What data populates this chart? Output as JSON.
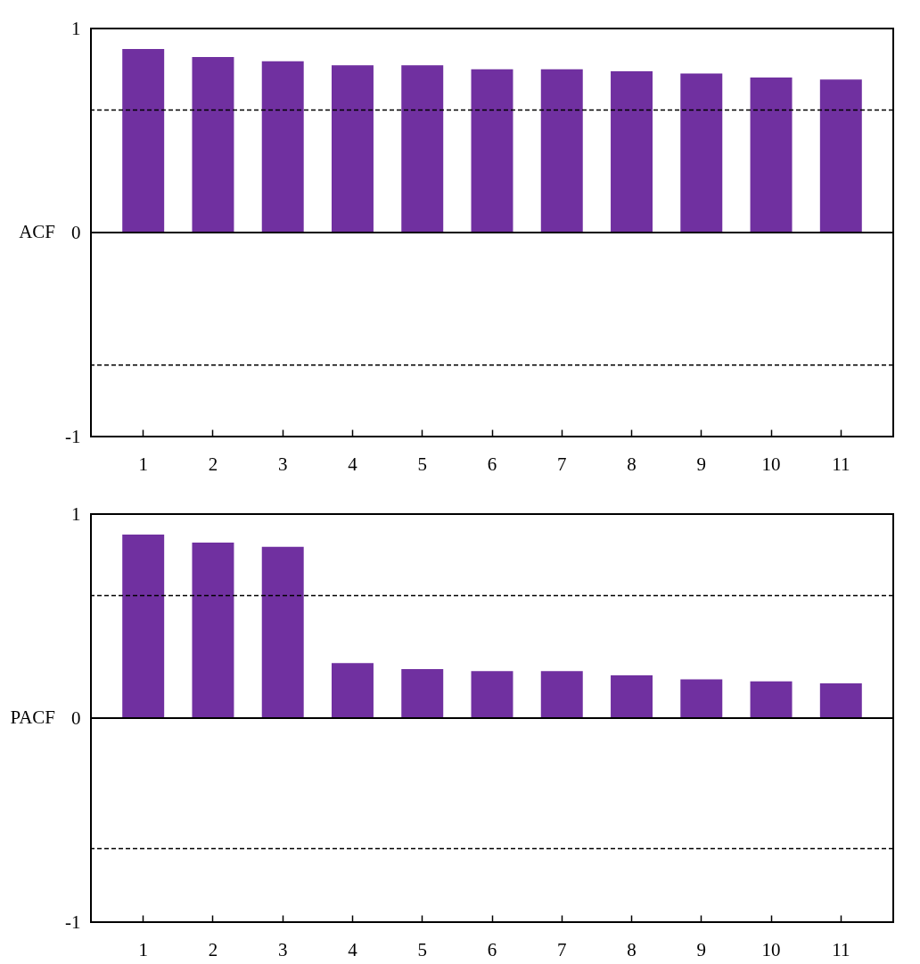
{
  "chart_data": [
    {
      "type": "bar",
      "ylabel": "ACF",
      "categories": [
        "1",
        "2",
        "3",
        "4",
        "5",
        "6",
        "7",
        "8",
        "9",
        "10",
        "11"
      ],
      "values": [
        0.9,
        0.86,
        0.84,
        0.82,
        0.82,
        0.8,
        0.8,
        0.79,
        0.78,
        0.76,
        0.75
      ],
      "color": "#7030a0",
      "ylim": [
        -1,
        1
      ],
      "yticks": [
        -1,
        0,
        1
      ],
      "grid": false,
      "ref_lines": [
        {
          "axis": "y",
          "value": 0,
          "line_style": "solid"
        },
        {
          "axis": "y",
          "value": 0.6,
          "line_style": "dashed"
        },
        {
          "axis": "y",
          "value": -0.65,
          "line_style": "dashed"
        }
      ]
    },
    {
      "type": "bar",
      "ylabel": "PACF",
      "categories": [
        "1",
        "2",
        "3",
        "4",
        "5",
        "6",
        "7",
        "8",
        "9",
        "10",
        "11"
      ],
      "values": [
        0.9,
        0.86,
        0.84,
        0.27,
        0.24,
        0.23,
        0.23,
        0.21,
        0.19,
        0.18,
        0.17
      ],
      "color": "#7030a0",
      "ylim": [
        -1,
        1
      ],
      "yticks": [
        -1,
        0,
        1
      ],
      "grid": false,
      "ref_lines": [
        {
          "axis": "y",
          "value": 0,
          "line_style": "solid"
        },
        {
          "axis": "y",
          "value": 0.6,
          "line_style": "dashed"
        },
        {
          "axis": "y",
          "value": -0.64,
          "line_style": "dashed"
        }
      ]
    }
  ]
}
